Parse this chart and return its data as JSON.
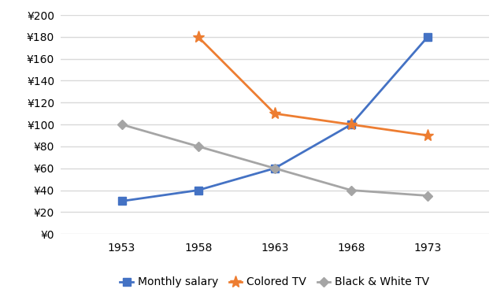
{
  "years": [
    1953,
    1958,
    1963,
    1968,
    1973
  ],
  "monthly_salary": [
    30,
    40,
    60,
    100,
    180
  ],
  "colored_tv": [
    null,
    180,
    110,
    100,
    90
  ],
  "bw_tv": [
    100,
    80,
    60,
    40,
    35
  ],
  "salary_color": "#4472c4",
  "colored_tv_color": "#ed7d31",
  "bw_tv_color": "#a5a5a5",
  "ylim": [
    0,
    200
  ],
  "yticks": [
    0,
    20,
    40,
    60,
    80,
    100,
    120,
    140,
    160,
    180,
    200
  ],
  "legend_labels": [
    "Monthly salary",
    "Colored TV",
    "Black & White TV"
  ],
  "background_color": "#ffffff",
  "grid_color": "#d9d9d9",
  "tick_fontsize": 10,
  "legend_fontsize": 10,
  "xlim_left": 1949,
  "xlim_right": 1977
}
